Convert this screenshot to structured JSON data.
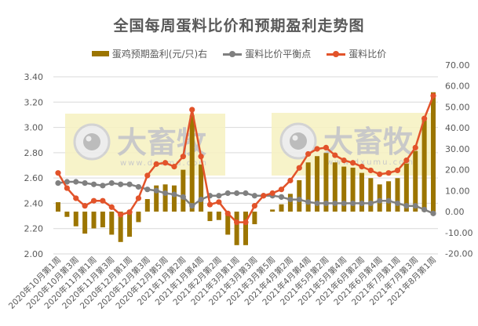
{
  "title": "全国每周蛋料比价和预期盈利走势图",
  "legend": [
    {
      "label": "蛋鸡预期盈利(元/只)右",
      "color": "#9C7500",
      "type": "bar"
    },
    {
      "label": "蛋料比价平衡点",
      "color": "#808080",
      "type": "line"
    },
    {
      "label": "蛋料比价",
      "color": "#E2532A",
      "type": "line"
    }
  ],
  "watermark": {
    "brand": "大畜牧",
    "url": "www.dxumu.com"
  },
  "chart_data": {
    "type": "bar+line",
    "title": "全国每周蛋料比价和预期盈利走势图",
    "xlabel": "",
    "ylabel_left": "",
    "ylabel_right": "",
    "ylim_left": [
      2.0,
      3.4
    ],
    "ylim_right": [
      -20,
      70
    ],
    "yticks_left": [
      "2.00",
      "2.20",
      "2.40",
      "2.60",
      "2.80",
      "3.00",
      "3.20",
      "3.40"
    ],
    "yticks_right": [
      "-20.00",
      "-10.00",
      "0.00",
      "10.00",
      "20.00",
      "30.00",
      "40.00",
      "50.00",
      "60.00",
      "70.00"
    ],
    "grid": true,
    "legend_position": "top",
    "x_tick_labels": [
      "2020年10月第1周",
      "2020年10月第3周",
      "2020年11月第1周",
      "2020年11月第3周",
      "2020年12月第1周",
      "2020年12月第3周",
      "2020年12月第5周",
      "2021年1月第2周",
      "2021年1月第4周",
      "2021年2月第2周",
      "2021年3月第1周",
      "2021年3月第3周",
      "2021年3月第5周",
      "2021年4月第2周",
      "2021年4月第4周",
      "2021年5月第2周",
      "2021年5月第4周",
      "2021年6月第2周",
      "2021年6月第4周",
      "2021年7月第1周",
      "2021年7月第3周",
      "2021年8月第1周"
    ],
    "x_tick_every": 2,
    "n_points": 43,
    "series": [
      {
        "name": "蛋鸡预期盈利(元/只)右",
        "type": "bar",
        "axis": "right",
        "color": "#9C7500",
        "values": [
          4.5,
          -2.5,
          -7,
          -10.5,
          -8,
          -7.5,
          -11,
          -14.5,
          -12,
          -5,
          6,
          12.5,
          13,
          12.5,
          20,
          46,
          22.5,
          -4.5,
          -4,
          -11,
          -16,
          -16,
          -6,
          0,
          1,
          3.5,
          8.5,
          15,
          23.5,
          26.5,
          28,
          23.5,
          21.5,
          21,
          18.5,
          16,
          13,
          14.5,
          16,
          23,
          29,
          44,
          57
        ]
      },
      {
        "name": "蛋料比价平衡点",
        "type": "line",
        "axis": "left",
        "color": "#808080",
        "values": [
          2.56,
          2.57,
          2.57,
          2.56,
          2.55,
          2.54,
          2.56,
          2.55,
          2.55,
          2.53,
          2.51,
          2.5,
          2.48,
          2.47,
          2.45,
          2.38,
          2.43,
          2.46,
          2.46,
          2.48,
          2.48,
          2.48,
          2.46,
          2.46,
          2.46,
          2.45,
          2.43,
          2.43,
          2.41,
          2.4,
          2.4,
          2.4,
          2.4,
          2.4,
          2.4,
          2.4,
          2.42,
          2.42,
          2.4,
          2.38,
          2.38,
          2.35,
          2.32
        ]
      },
      {
        "name": "蛋料比价",
        "type": "line",
        "axis": "left",
        "color": "#E2532A",
        "values": [
          2.64,
          2.52,
          2.44,
          2.38,
          2.42,
          2.42,
          2.37,
          2.31,
          2.33,
          2.44,
          2.62,
          2.71,
          2.72,
          2.69,
          2.77,
          3.14,
          2.77,
          2.39,
          2.41,
          2.32,
          2.25,
          2.25,
          2.38,
          2.46,
          2.48,
          2.51,
          2.58,
          2.68,
          2.79,
          2.83,
          2.84,
          2.78,
          2.74,
          2.72,
          2.69,
          2.66,
          2.63,
          2.64,
          2.66,
          2.74,
          2.84,
          3.07,
          3.25
        ]
      }
    ]
  }
}
